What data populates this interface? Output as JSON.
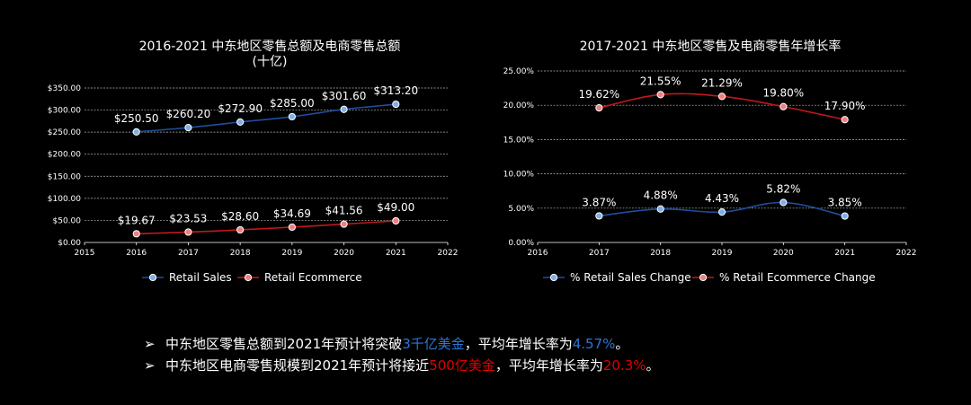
{
  "chart_data": [
    {
      "type": "line",
      "title": "2016-2021 中东地区零售总额及电商零售总额",
      "subtitle": "(十亿)",
      "xlim": [
        2015,
        2022
      ],
      "x_ticks": [
        "2015",
        "2016",
        "2017",
        "2018",
        "2019",
        "2020",
        "2021",
        "2022"
      ],
      "ylim": [
        0,
        350
      ],
      "y_ticks": [
        "$0.00",
        "$50.00",
        "$100.00",
        "$150.00",
        "$200.00",
        "$250.00",
        "$300.00",
        "$350.00"
      ],
      "grid": true,
      "legend_position": "bottom",
      "series": [
        {
          "name": "Retail Sales",
          "color": "#1f4e9c",
          "point_color": "#7fb0e8",
          "x": [
            2016,
            2017,
            2018,
            2019,
            2020,
            2021
          ],
          "values": [
            250.5,
            260.2,
            272.9,
            285.0,
            301.6,
            313.2
          ],
          "labels": [
            "$250.50",
            "$260.20",
            "$272.90",
            "$285.00",
            "$301.60",
            "$313.20"
          ]
        },
        {
          "name": "Retail Ecommerce",
          "color": "#c0181c",
          "point_color": "#f08080",
          "x": [
            2016,
            2017,
            2018,
            2019,
            2020,
            2021
          ],
          "values": [
            19.67,
            23.53,
            28.6,
            34.69,
            41.56,
            49.0
          ],
          "labels": [
            "$19.67",
            "$23.53",
            "$28.60",
            "$34.69",
            "$41.56",
            "$49.00"
          ]
        }
      ]
    },
    {
      "type": "line",
      "title": "2017-2021 中东地区零售及电商零售年增长率",
      "xlim": [
        2016,
        2022
      ],
      "x_ticks": [
        "2016",
        "2017",
        "2018",
        "2019",
        "2020",
        "2021",
        "2022"
      ],
      "ylim": [
        0,
        25
      ],
      "y_ticks": [
        "0.00%",
        "5.00%",
        "10.00%",
        "15.00%",
        "20.00%",
        "25.00%"
      ],
      "grid": true,
      "legend_position": "bottom",
      "series": [
        {
          "name": "% Retail Sales Change",
          "color": "#1f4e9c",
          "point_color": "#7fb0e8",
          "x": [
            2017,
            2018,
            2019,
            2020,
            2021
          ],
          "values": [
            3.87,
            4.88,
            4.43,
            5.82,
            3.85
          ],
          "labels": [
            "3.87%",
            "4.88%",
            "4.43%",
            "5.82%",
            "3.85%"
          ]
        },
        {
          "name": "% Retail Ecommerce Change",
          "color": "#c0181c",
          "point_color": "#f08080",
          "x": [
            2017,
            2018,
            2019,
            2020,
            2021
          ],
          "values": [
            19.62,
            21.55,
            21.29,
            19.8,
            17.9
          ],
          "labels": [
            "19.62%",
            "21.55%",
            "21.29%",
            "19.80%",
            "17.90%"
          ]
        }
      ]
    }
  ],
  "bullets": [
    {
      "marker": "➢",
      "before": "中东地区零售总额到2021年预计将突破",
      "highlight": "3千亿美金",
      "after_mid": "，平均年增长率为",
      "highlight2": "4.57%",
      "after": "。",
      "color": "#2e75d6"
    },
    {
      "marker": "➢",
      "before": "中东地区电商零售规模到2021年预计将接近",
      "highlight": "500亿美金",
      "after_mid": "，平均年增长率为",
      "highlight2": "20.3%",
      "after": "。",
      "color": "#e00000"
    }
  ]
}
